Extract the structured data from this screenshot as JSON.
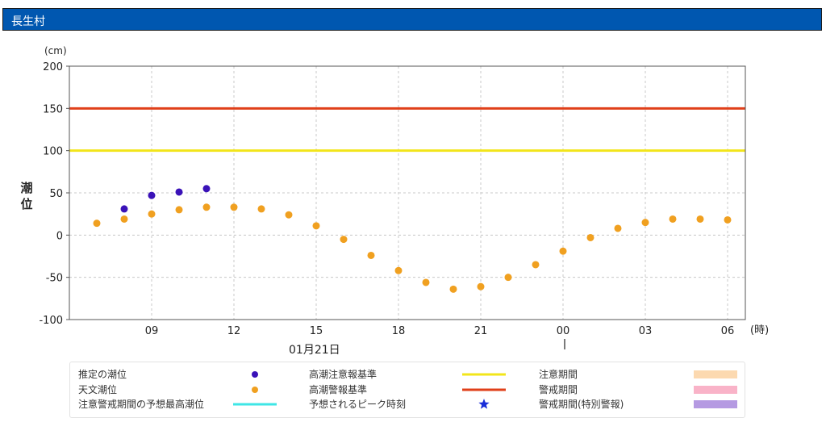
{
  "header": {
    "title": "長生村"
  },
  "chart_data": {
    "type": "scatter",
    "xlabel": "(時)",
    "ylabel": "潮位",
    "yunit": "(cm)",
    "ylim": [
      -100,
      200
    ],
    "yticks": [
      200,
      150,
      100,
      50,
      0,
      -50,
      -100
    ],
    "grid": true,
    "date_label": "01月21日",
    "x_tick_labels": [
      "09",
      "12",
      "15",
      "18",
      "21",
      "00",
      "03",
      "06"
    ],
    "hours": [
      "07",
      "08",
      "09",
      "10",
      "11",
      "12",
      "13",
      "14",
      "15",
      "16",
      "17",
      "18",
      "19",
      "20",
      "21",
      "22",
      "23",
      "00",
      "01",
      "02",
      "03",
      "04",
      "05",
      "06"
    ],
    "series": [
      {
        "name": "推定の潮位",
        "color": "#3a12b8",
        "hours": [
          "08",
          "09",
          "10",
          "11"
        ],
        "values": [
          31,
          47,
          51,
          55
        ]
      },
      {
        "name": "天文潮位",
        "color": "#f0a020",
        "hours": [
          "07",
          "08",
          "09",
          "10",
          "11",
          "12",
          "13",
          "14",
          "15",
          "16",
          "17",
          "18",
          "19",
          "20",
          "21",
          "22",
          "23",
          "00",
          "01",
          "02",
          "03",
          "04",
          "05",
          "06"
        ],
        "values": [
          14,
          19,
          25,
          30,
          33,
          33,
          31,
          24,
          11,
          -5,
          -24,
          -42,
          -56,
          -64,
          -61,
          -50,
          -35,
          -19,
          -3,
          8,
          15,
          19,
          19,
          18
        ]
      }
    ],
    "thresholds": [
      {
        "name": "高潮注意報基準",
        "value": 100,
        "color": "#f2e51a"
      },
      {
        "name": "高潮警報基準",
        "value": 150,
        "color": "#e0401a"
      }
    ],
    "legend": {
      "placement": "bottom",
      "items": [
        {
          "label": "推定の潮位",
          "kind": "dot",
          "color": "#3a12b8"
        },
        {
          "label": "高潮注意報基準",
          "kind": "line",
          "color": "#f2e51a"
        },
        {
          "label": "注意期間",
          "kind": "band",
          "color": "#fcd9b0"
        },
        {
          "label": "天文潮位",
          "kind": "dot",
          "color": "#f0a020"
        },
        {
          "label": "高潮警報基準",
          "kind": "line",
          "color": "#e0401a"
        },
        {
          "label": "警戒期間",
          "kind": "band",
          "color": "#f9b3c8"
        },
        {
          "label": "注意警戒期間の予想最高潮位",
          "kind": "line",
          "color": "#3ee6e6"
        },
        {
          "label": "予想されるピーク時刻",
          "kind": "star",
          "color": "#1a2ed8"
        },
        {
          "label": "警戒期間(特別警報)",
          "kind": "band",
          "color": "#b59ae2"
        }
      ]
    }
  }
}
